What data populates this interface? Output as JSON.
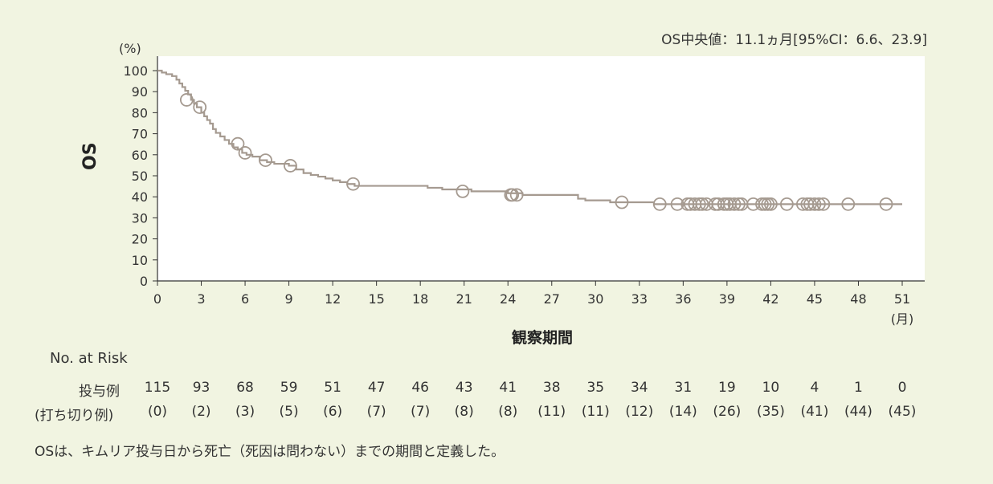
{
  "chart_data": {
    "type": "line",
    "title": "",
    "annotation": "OS中央値：11.1ヵ月[95%CI：6.6、23.9]",
    "ylabel": "OS",
    "yunit": "(%)",
    "xlabel": "観察期間",
    "xunit": "(月)",
    "xlim": [
      0,
      51
    ],
    "ylim": [
      0,
      100
    ],
    "xticks": [
      "0",
      "3",
      "6",
      "9",
      "12",
      "15",
      "18",
      "21",
      "24",
      "27",
      "30",
      "33",
      "36",
      "39",
      "42",
      "45",
      "48",
      "51"
    ],
    "yticks": [
      "0",
      "10",
      "20",
      "30",
      "40",
      "50",
      "60",
      "70",
      "80",
      "90",
      "100"
    ],
    "series": [
      {
        "color": "#a59a90",
        "step_x": [
          0,
          0.3,
          0.6,
          1.0,
          1.3,
          1.5,
          1.7,
          1.9,
          2.1,
          2.3,
          2.5,
          2.7,
          3.0,
          3.2,
          3.4,
          3.6,
          3.8,
          4.0,
          4.3,
          4.6,
          4.9,
          5.2,
          5.5,
          5.8,
          6.1,
          6.5,
          7.0,
          7.5,
          8.0,
          9.0,
          9.5,
          10.0,
          10.5,
          11.0,
          11.5,
          12.0,
          12.5,
          13.0,
          13.5,
          14.5,
          18.5,
          19.5,
          20.5,
          21.5,
          24.0,
          25.0,
          28.5,
          28.8,
          29.3,
          31.0,
          32.5,
          34.0,
          51.0
        ],
        "step_y": [
          100,
          99.1,
          98.3,
          97.4,
          95.7,
          93.9,
          92.2,
          90.4,
          88.7,
          86.1,
          84.3,
          82.6,
          80.0,
          78.3,
          76.5,
          74.8,
          72.2,
          70.4,
          68.7,
          67.0,
          65.2,
          63.5,
          62.6,
          60.9,
          60.0,
          59.1,
          57.4,
          56.5,
          55.7,
          54.8,
          53.0,
          51.3,
          50.4,
          49.6,
          48.7,
          47.8,
          47.0,
          46.1,
          45.2,
          45.2,
          44.3,
          43.5,
          43.5,
          42.6,
          41.7,
          40.9,
          40.9,
          39.1,
          38.3,
          37.4,
          37.4,
          36.5,
          36.5
        ],
        "censor_x": [
          2.0,
          2.9,
          5.5,
          6.0,
          7.4,
          9.1,
          13.4,
          20.9,
          24.2,
          24.3,
          24.6,
          31.8,
          34.4,
          35.6,
          36.3,
          36.5,
          36.8,
          37.1,
          37.3,
          37.6,
          38.2,
          38.4,
          38.8,
          39.0,
          39.2,
          39.5,
          39.8,
          40.0,
          40.8,
          41.4,
          41.6,
          41.8,
          42.0,
          43.1,
          44.2,
          44.5,
          44.7,
          45.0,
          45.3,
          45.6,
          47.3,
          49.9
        ],
        "censor_y": [
          86.1,
          82.6,
          65.2,
          60.9,
          57.4,
          54.8,
          46.1,
          42.6,
          40.9,
          40.9,
          40.9,
          37.4,
          36.5,
          36.5,
          36.5,
          36.5,
          36.5,
          36.5,
          36.5,
          36.5,
          36.5,
          36.5,
          36.5,
          36.5,
          36.5,
          36.5,
          36.5,
          36.5,
          36.5,
          36.5,
          36.5,
          36.5,
          36.5,
          36.5,
          36.5,
          36.5,
          36.5,
          36.5,
          36.5,
          36.5,
          36.5,
          36.5
        ]
      }
    ]
  },
  "risk_table": {
    "header": "No. at Risk",
    "row1_label": "投与例",
    "row2_label": "(打ち切り例)",
    "at_risk": [
      "115",
      "93",
      "68",
      "59",
      "51",
      "47",
      "46",
      "43",
      "41",
      "38",
      "35",
      "34",
      "31",
      "19",
      "10",
      "4",
      "1",
      "0"
    ],
    "censored": [
      "(0)",
      "(2)",
      "(3)",
      "(5)",
      "(6)",
      "(7)",
      "(7)",
      "(8)",
      "(8)",
      "(11)",
      "(11)",
      "(12)",
      "(14)",
      "(26)",
      "(35)",
      "(41)",
      "(44)",
      "(45)"
    ]
  },
  "footnote": "OSは、キムリア投与日から死亡（死因は問わない）までの期間と定義した。"
}
